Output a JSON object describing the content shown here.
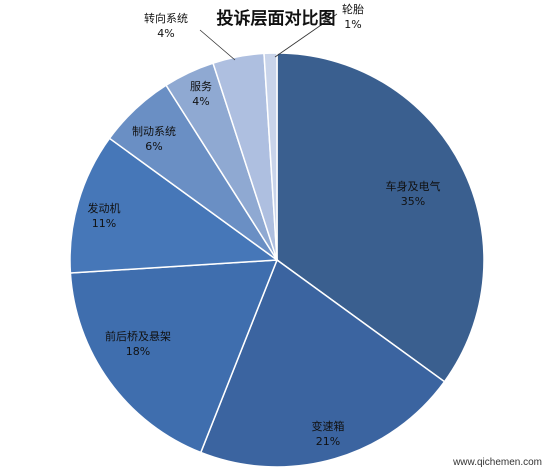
{
  "chart_data": {
    "type": "pie",
    "title": "投诉层面对比图",
    "slices": [
      {
        "label": "车身及电气",
        "value": 35,
        "pct_label": "35%",
        "color": "#3a5f8f"
      },
      {
        "label": "变速箱",
        "value": 21,
        "pct_label": "21%",
        "color": "#3b64a0"
      },
      {
        "label": "前后桥及悬架",
        "value": 18,
        "pct_label": "18%",
        "color": "#3f6eae"
      },
      {
        "label": "发动机",
        "value": 11,
        "pct_label": "11%",
        "color": "#4677b8"
      },
      {
        "label": "制动系统",
        "value": 6,
        "pct_label": "6%",
        "color": "#6a8fc4"
      },
      {
        "label": "服务",
        "value": 4,
        "pct_label": "4%",
        "color": "#8fa9d2"
      },
      {
        "label": "转向系统",
        "value": 4,
        "pct_label": "4%",
        "color": "#aebfe0"
      },
      {
        "label": "轮胎",
        "value": 1,
        "pct_label": "1%",
        "color": "#c9d4ea"
      }
    ]
  },
  "watermark": {
    "text": "www.qichemen.com"
  }
}
